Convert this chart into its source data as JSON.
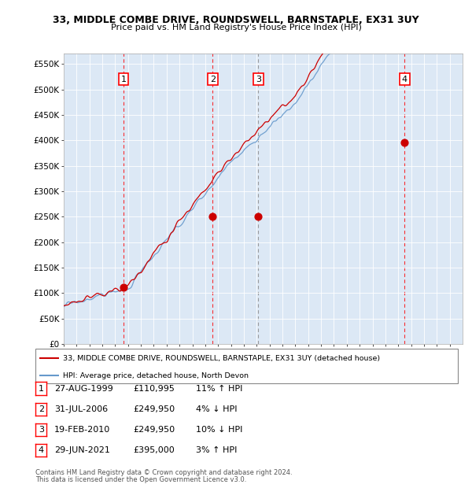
{
  "title_line1": "33, MIDDLE COMBE DRIVE, ROUNDSWELL, BARNSTAPLE, EX31 3UY",
  "title_line2": "Price paid vs. HM Land Registry's House Price Index (HPI)",
  "ylabel_ticks": [
    "£0",
    "£50K",
    "£100K",
    "£150K",
    "£200K",
    "£250K",
    "£300K",
    "£350K",
    "£400K",
    "£450K",
    "£500K",
    "£550K"
  ],
  "ytick_values": [
    0,
    50000,
    100000,
    150000,
    200000,
    250000,
    300000,
    350000,
    400000,
    450000,
    500000,
    550000
  ],
  "xmin": 1995.0,
  "xmax": 2026.0,
  "ymin": 0,
  "ymax": 570000,
  "sale_color": "#cc0000",
  "hpi_color": "#6699cc",
  "hpi_fill_color": "#cce0ff",
  "background_color": "#dce8f5",
  "transactions": [
    {
      "num": 1,
      "date": "27-AUG-1999",
      "price": 110995,
      "pct": "11%",
      "dir": "↑",
      "year": 1999.65
    },
    {
      "num": 2,
      "date": "31-JUL-2006",
      "price": 249950,
      "pct": "4%",
      "dir": "↓",
      "year": 2006.58
    },
    {
      "num": 3,
      "date": "19-FEB-2010",
      "price": 249950,
      "pct": "10%",
      "dir": "↓",
      "year": 2010.13
    },
    {
      "num": 4,
      "date": "29-JUN-2021",
      "price": 395000,
      "pct": "3%",
      "dir": "↑",
      "year": 2021.5
    }
  ],
  "legend_line1": "33, MIDDLE COMBE DRIVE, ROUNDSWELL, BARNSTAPLE, EX31 3UY (detached house)",
  "legend_line2": "HPI: Average price, detached house, North Devon",
  "footer1": "Contains HM Land Registry data © Crown copyright and database right 2024.",
  "footer2": "This data is licensed under the Open Government Licence v3.0."
}
